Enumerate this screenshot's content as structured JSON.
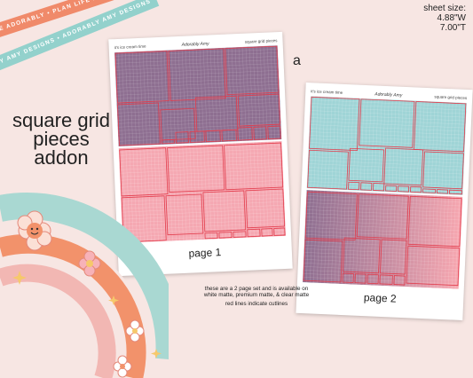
{
  "ribbons": {
    "top": "PLAN LIFE ADORABLY • PLAN LIFE ADORABLY • PLAN LIFE ADORABLY",
    "bottom": "ADORABLY AMY DESIGNS • ADORABLY AMY DESIGNS • ADORABLY AMY DESIGNS"
  },
  "title": {
    "line1": "square grid",
    "line2": "pieces",
    "line3": "addon"
  },
  "sheet_size": {
    "label": "sheet size:",
    "width": "4.88\"W",
    "height": "7.00\"T"
  },
  "variant_letter": "a",
  "page1": {
    "header_left": "it's ice cream time",
    "brand": "Adorably Amy",
    "header_right": "square grid pieces",
    "label": "page 1",
    "colors": {
      "top": "#8e6f91",
      "bottom": "#f5a8b2",
      "cutline": "#e23b4b"
    }
  },
  "page2": {
    "header_left": "it's ice cream time",
    "brand": "Adorably Amy",
    "header_right": "square grid pieces",
    "label": "page 2",
    "colors": {
      "top": "#9fd4d6",
      "bottom_left": "#8e6f91",
      "bottom_right": "#f7a7b0",
      "cutline": "#e23b4b"
    }
  },
  "info": {
    "line1": "these are a 2 page set and is available on white matte, premium matte, & clear matte",
    "line2": "red lines indicate cutlines"
  },
  "rainbow_colors": [
    "#a9d8d2",
    "#f7e6e3",
    "#f2926b",
    "#f7e6e3",
    "#f2b7b3"
  ]
}
